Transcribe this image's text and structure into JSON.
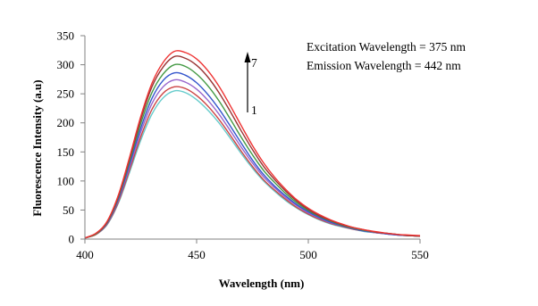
{
  "chart_data": {
    "type": "line",
    "xlabel": "Wavelength (nm)",
    "ylabel": "Fluorescence Intensity (a.u)",
    "xlim": [
      400,
      550
    ],
    "ylim": [
      0,
      350
    ],
    "xticks": [
      400,
      450,
      500,
      550
    ],
    "yticks": [
      0,
      50,
      100,
      150,
      200,
      250,
      300,
      350
    ],
    "grid": false,
    "legend": "none",
    "annotations": [
      "Excitation Wavelength = 375 nm",
      "Emission Wavelength = 442 nm"
    ],
    "arrow": {
      "from_label": "1",
      "to_label": "7",
      "direction": "up"
    },
    "x": [
      400,
      405,
      410,
      415,
      420,
      425,
      430,
      435,
      440,
      445,
      450,
      455,
      460,
      465,
      470,
      475,
      480,
      485,
      490,
      495,
      500,
      505,
      510,
      515,
      520,
      525,
      530,
      535,
      540,
      545,
      550
    ],
    "series": [
      {
        "color": "#66cccc",
        "values": [
          2,
          8,
          25,
          62,
          115,
          170,
          215,
          243,
          255,
          252,
          240,
          222,
          200,
          174,
          147,
          122,
          100,
          82,
          66,
          53,
          42,
          33,
          26,
          21,
          17,
          13,
          11,
          9,
          7,
          6,
          5
        ]
      },
      {
        "color": "#cc4444",
        "values": [
          2,
          8,
          26,
          64,
          119,
          176,
          223,
          251,
          262,
          259,
          247,
          229,
          206,
          179,
          151,
          125,
          102,
          84,
          68,
          54,
          43,
          34,
          27,
          22,
          17,
          14,
          11,
          9,
          7,
          6,
          5
        ]
      },
      {
        "color": "#9966cc",
        "values": [
          2,
          9,
          27,
          67,
          124,
          184,
          233,
          262,
          274,
          270,
          258,
          239,
          215,
          187,
          158,
          131,
          107,
          88,
          71,
          57,
          45,
          36,
          28,
          23,
          18,
          14,
          11,
          9,
          7,
          6,
          5
        ]
      },
      {
        "color": "#3355cc",
        "values": [
          2,
          9,
          28,
          69,
          129,
          191,
          242,
          273,
          286,
          282,
          269,
          249,
          224,
          195,
          165,
          136,
          111,
          91,
          74,
          59,
          47,
          37,
          29,
          23,
          18,
          14,
          12,
          9,
          7,
          6,
          5
        ]
      },
      {
        "color": "#449944",
        "values": [
          2,
          9,
          29,
          72,
          134,
          199,
          252,
          284,
          300,
          297,
          284,
          264,
          238,
          207,
          175,
          145,
          118,
          97,
          78,
          62,
          49,
          39,
          31,
          24,
          19,
          15,
          12,
          10,
          8,
          6,
          5
        ]
      },
      {
        "color": "#993333",
        "values": [
          2,
          10,
          30,
          74,
          138,
          206,
          262,
          296,
          314,
          311,
          299,
          279,
          252,
          220,
          186,
          154,
          125,
          102,
          82,
          65,
          51,
          40,
          32,
          25,
          20,
          16,
          12,
          10,
          8,
          6,
          5
        ]
      },
      {
        "color": "#ee3333",
        "values": [
          2,
          10,
          31,
          76,
          141,
          211,
          268,
          304,
          323,
          321,
          310,
          290,
          263,
          230,
          195,
          161,
          131,
          106,
          85,
          67,
          53,
          42,
          33,
          26,
          20,
          16,
          13,
          10,
          8,
          7,
          6
        ]
      }
    ]
  }
}
